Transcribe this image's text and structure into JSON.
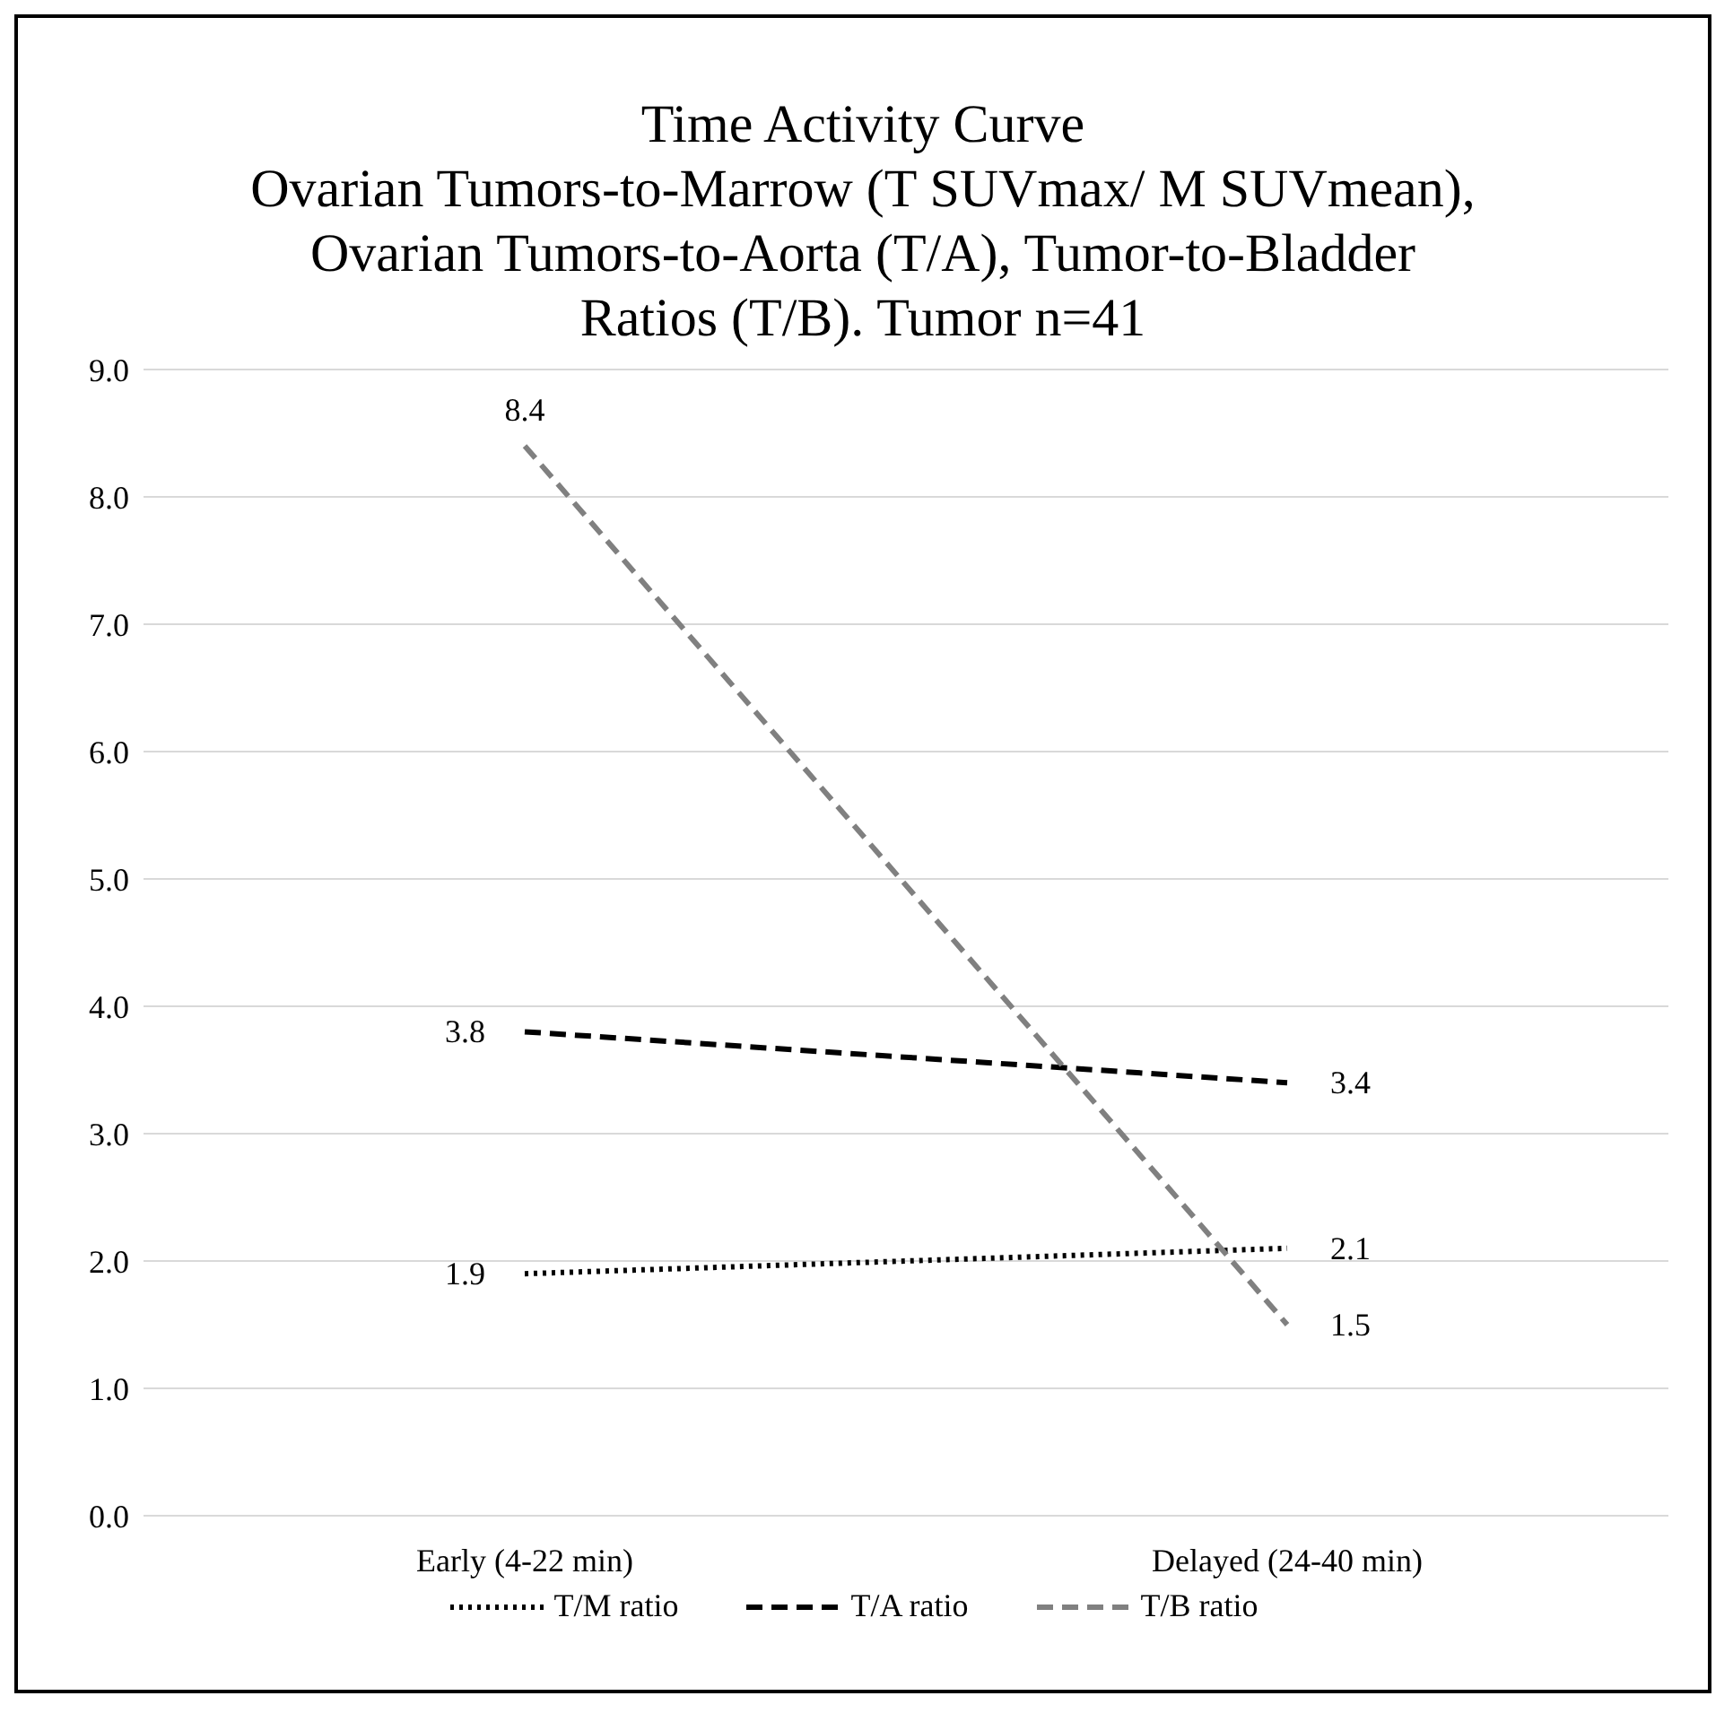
{
  "chart_data": {
    "type": "line",
    "title": "Time Activity Curve",
    "subtitle": "Ovarian Tumors-to-Marrow (T SUVmax/ M SUVmean), Ovarian Tumors-to-Aorta (T/A), Tumor-to-Bladder Ratios (T/B). Tumor n=41",
    "categories": [
      "Early (4-22 min)",
      "Delayed (24-40 min)"
    ],
    "series": [
      {
        "name": "T/M ratio",
        "color": "#000000",
        "values": [
          1.9,
          2.1
        ],
        "line_style": "dotted"
      },
      {
        "name": "T/A ratio",
        "color": "#000000",
        "values": [
          3.8,
          3.4
        ],
        "line_style": "dashed"
      },
      {
        "name": "T/B ratio",
        "color": "#808080",
        "values": [
          8.4,
          1.5
        ],
        "line_style": "dashed"
      }
    ],
    "ylim": [
      0,
      9
    ],
    "yticks": [
      {
        "value": 0,
        "label": "0.0"
      },
      {
        "value": 1,
        "label": "1.0"
      },
      {
        "value": 2,
        "label": "2.0"
      },
      {
        "value": 3,
        "label": "3.0"
      },
      {
        "value": 4,
        "label": "4.0"
      },
      {
        "value": 5,
        "label": "5.0"
      },
      {
        "value": 6,
        "label": "6.0"
      },
      {
        "value": 7,
        "label": "7.0"
      },
      {
        "value": 8,
        "label": "8.0"
      },
      {
        "value": 9,
        "label": "9.0"
      }
    ],
    "grid": "y",
    "legend": "bottom",
    "data_labels": true,
    "marker": "none"
  }
}
